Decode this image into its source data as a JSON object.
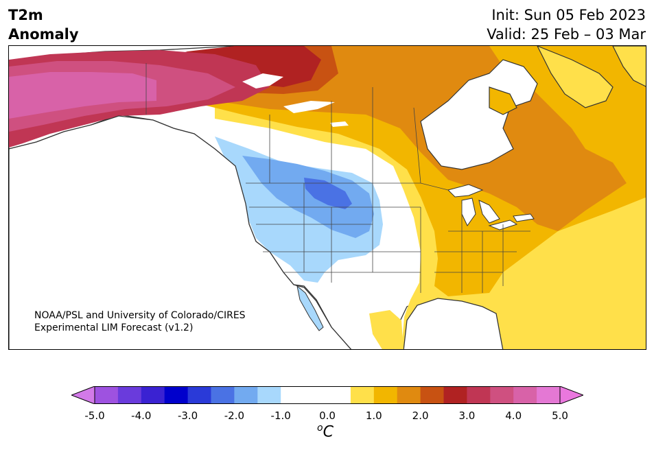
{
  "header": {
    "title_line1": "T2m",
    "title_line2": "Anomaly",
    "init_label": "Init: Sun 05 Feb 2023",
    "valid_label": "Valid: 25 Feb – 03 Mar"
  },
  "credit": {
    "line1": "NOAA/PSL and University of Colorado/CIRES",
    "line2": "Experimental LIM Forecast (v1.2)"
  },
  "colorbar": {
    "levels": [
      -5.0,
      -4.5,
      -4.0,
      -3.5,
      -3.0,
      -2.5,
      -2.0,
      -1.5,
      -1.0,
      -0.5,
      0.5,
      1.0,
      1.5,
      2.0,
      2.5,
      3.0,
      3.5,
      4.0,
      4.5,
      5.0
    ],
    "colors": [
      "#9e52e0",
      "#6a3bdc",
      "#3a22d2",
      "#0000cc",
      "#2a3ad8",
      "#4a72e4",
      "#72aaf0",
      "#a8d8fc",
      "#ffffff",
      "#ffffff",
      "#ffe04a",
      "#f2b600",
      "#e08a10",
      "#c85212",
      "#b02222",
      "#c03654",
      "#cf5080",
      "#d862a8",
      "#e478d4"
    ],
    "under_color": "#d27ae8",
    "over_color": "#ea78de",
    "tick_labels": [
      "-5.0",
      "-4.0",
      "-3.0",
      "-2.0",
      "-1.0",
      "0.0",
      "1.0",
      "2.0",
      "3.0",
      "4.0",
      "5.0"
    ],
    "unit_base": "C",
    "unit_sup": "o"
  },
  "map": {
    "colors": {
      "ocean": "#ffffff",
      "coast": "#333333",
      "border": "#444444",
      "lake": "#ffffff"
    }
  }
}
